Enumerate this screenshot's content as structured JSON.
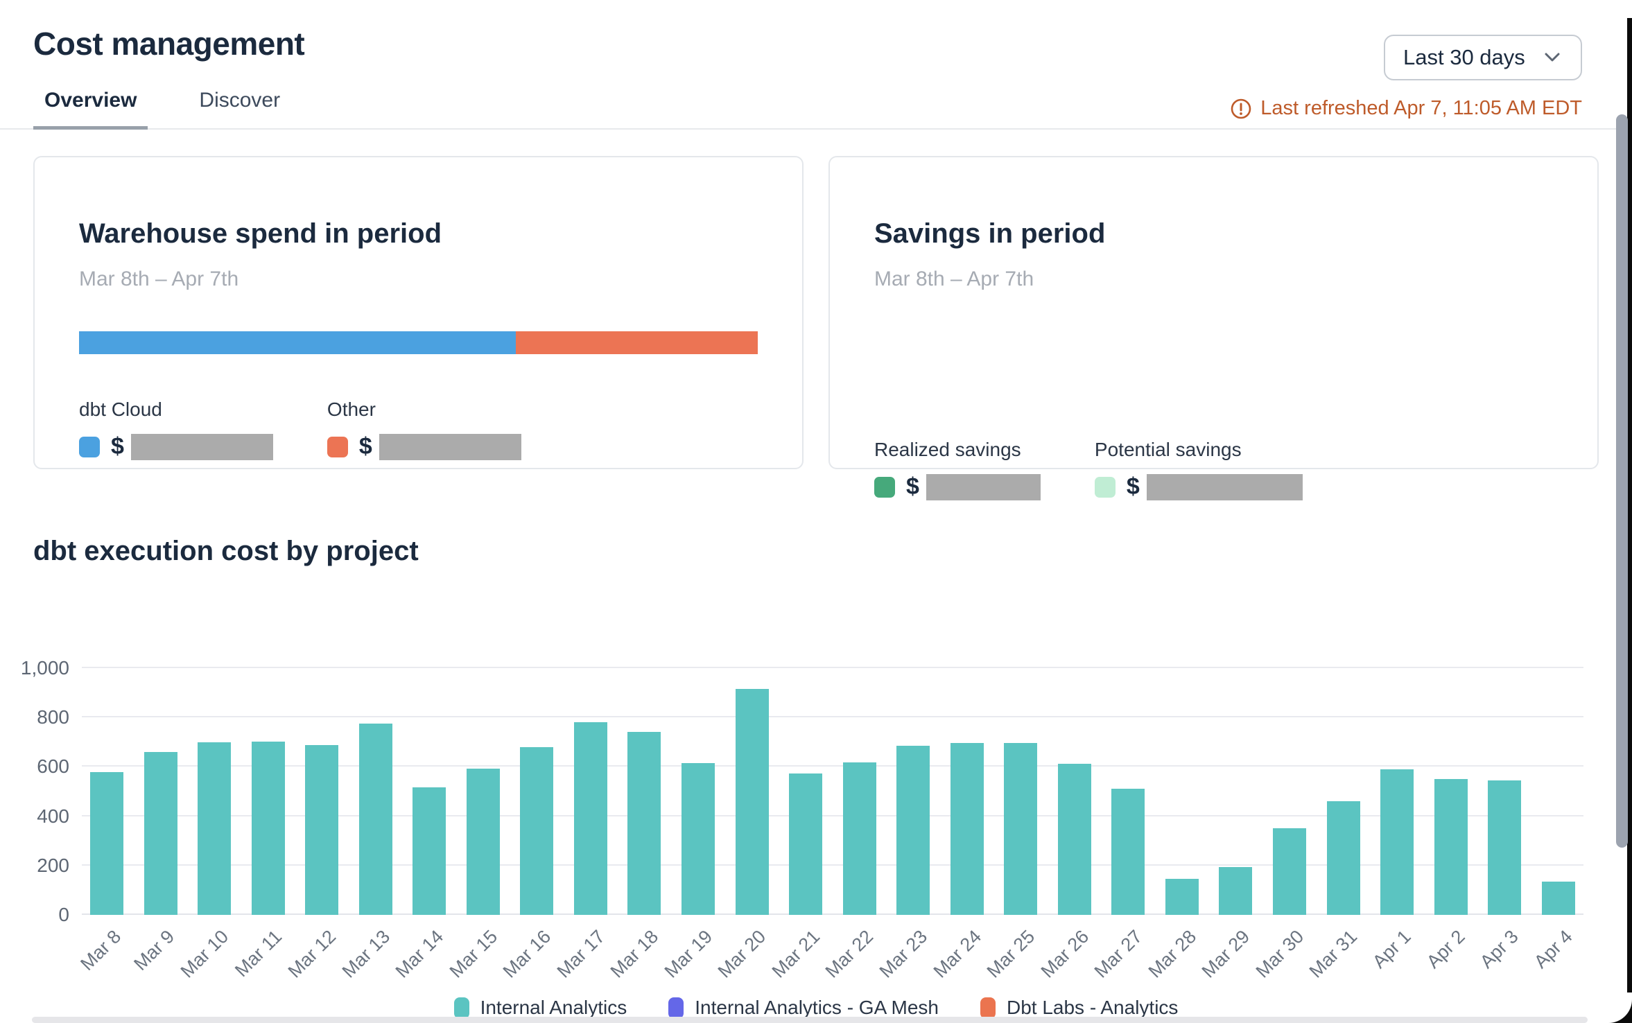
{
  "header": {
    "title": "Cost management",
    "date_range": "Last 30 days",
    "last_refreshed": "Last refreshed Apr 7, 11:05 AM EDT"
  },
  "tabs": [
    {
      "label": "Overview",
      "active": true
    },
    {
      "label": "Discover",
      "active": false
    }
  ],
  "cards": {
    "warehouse_spend": {
      "title": "Warehouse spend in period",
      "period": "Mar 8th – Apr 7th",
      "bar_segments": [
        {
          "label": "dbt Cloud",
          "color": "#4ba1e0",
          "percent": 64.4
        },
        {
          "label": "Other",
          "color": "#ec7454",
          "percent": 35.6
        }
      ],
      "items": [
        {
          "label": "dbt Cloud",
          "color": "#4ba1e0",
          "currency": "$",
          "value_redacted": true
        },
        {
          "label": "Other",
          "color": "#ec7454",
          "currency": "$",
          "value_redacted": true
        }
      ]
    },
    "savings": {
      "title": "Savings in period",
      "period": "Mar 8th – Apr 7th",
      "items": [
        {
          "label": "Realized savings",
          "color": "#46a97b",
          "currency": "$",
          "value_redacted": true
        },
        {
          "label": "Potential savings",
          "color": "#c0edd4",
          "currency": "$",
          "value_redacted": true
        }
      ]
    }
  },
  "section": {
    "title": "dbt execution cost by project"
  },
  "chart_data": {
    "type": "bar",
    "title": "dbt execution cost by project",
    "categories": [
      "Mar 8",
      "Mar 9",
      "Mar 10",
      "Mar 11",
      "Mar 12",
      "Mar 13",
      "Mar 14",
      "Mar 15",
      "Mar 16",
      "Mar 17",
      "Mar 18",
      "Mar 19",
      "Mar 20",
      "Mar 21",
      "Mar 22",
      "Mar 23",
      "Mar 24",
      "Mar 25",
      "Mar 26",
      "Mar 27",
      "Mar 28",
      "Mar 29",
      "Mar 30",
      "Mar 31",
      "Apr 1",
      "Apr 2",
      "Apr 3",
      "Apr 4"
    ],
    "series": [
      {
        "name": "Internal Analytics",
        "color": "#5bc4c1",
        "values": [
          580,
          660,
          700,
          702,
          688,
          775,
          518,
          592,
          680,
          780,
          742,
          614,
          915,
          572,
          618,
          685,
          698,
          697,
          612,
          510,
          145,
          195,
          350,
          460,
          590,
          550,
          545,
          135
        ]
      }
    ],
    "legend": [
      {
        "name": "Internal Analytics",
        "color": "#5bc4c1"
      },
      {
        "name": "Internal Analytics - GA Mesh",
        "color": "#6467e8"
      },
      {
        "name": "Dbt Labs - Analytics",
        "color": "#eb744f"
      }
    ],
    "xlabel": "",
    "ylabel": "",
    "ylim": [
      0,
      1000
    ],
    "yticks": [
      "0",
      "200",
      "400",
      "600",
      "800",
      "1,000"
    ],
    "grid": true,
    "legend_position": "bottom"
  }
}
